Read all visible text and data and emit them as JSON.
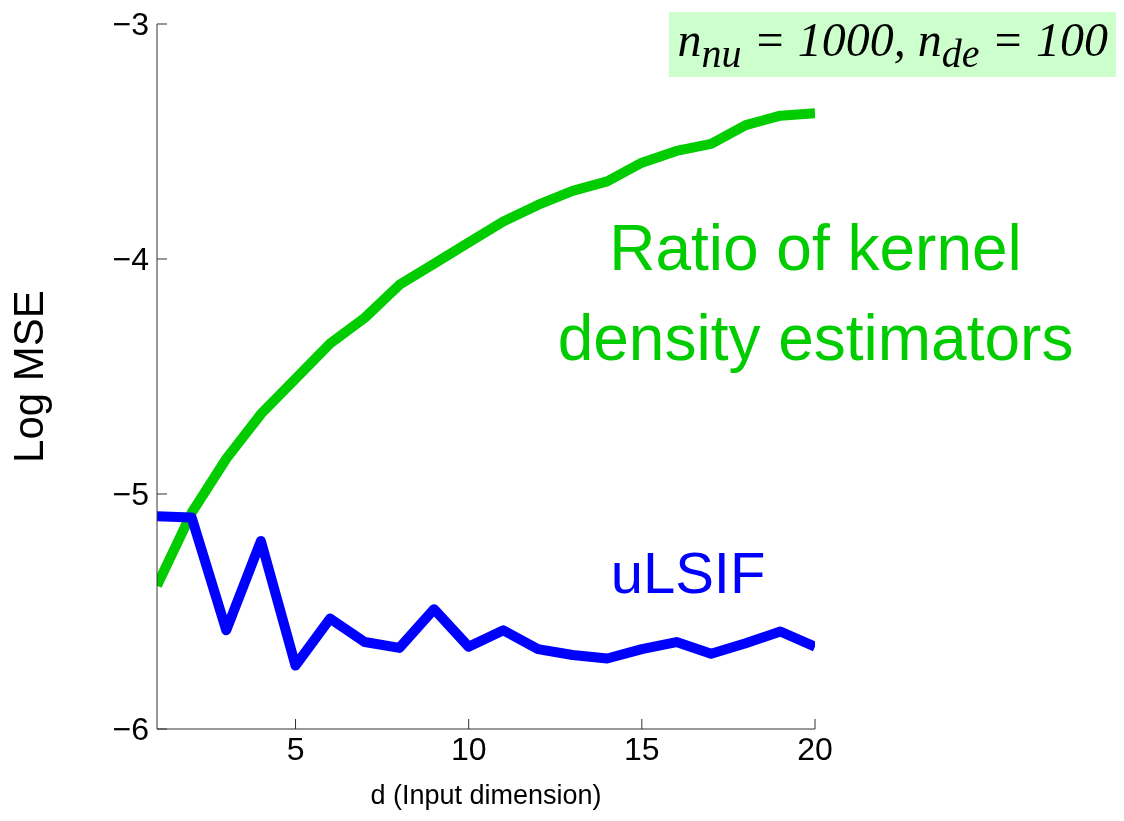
{
  "chart_data": {
    "type": "line",
    "xlabel": "d (Input dimension)",
    "ylabel": "Log MSE",
    "annotations": [
      "n$_{nu}$ = 1000, n$_{de}$ = 100"
    ],
    "x": [
      1,
      2,
      3,
      4,
      5,
      6,
      7,
      8,
      9,
      10,
      11,
      12,
      13,
      14,
      15,
      16,
      17,
      18,
      19,
      20
    ],
    "series": [
      {
        "name": "Ratio of kernel density estimators",
        "color": "#00cc00",
        "values": [
          -5.39,
          -5.08,
          -4.85,
          -4.66,
          -4.51,
          -4.36,
          -4.25,
          -4.11,
          -4.02,
          -3.93,
          -3.84,
          -3.77,
          -3.71,
          -3.67,
          -3.59,
          -3.54,
          -3.51,
          -3.43,
          -3.39,
          -3.38
        ]
      },
      {
        "name": "uLSIF",
        "color": "#0000ff",
        "values": [
          -5.095,
          -5.1,
          -5.58,
          -5.2,
          -5.73,
          -5.53,
          -5.63,
          -5.655,
          -5.49,
          -5.65,
          -5.58,
          -5.66,
          -5.685,
          -5.7,
          -5.66,
          -5.63,
          -5.68,
          -5.635,
          -5.585,
          -5.65
        ]
      }
    ],
    "xlim": [
      1,
      20
    ],
    "xticks": [
      5,
      10,
      15,
      20
    ],
    "ylim": [
      -6,
      -3
    ],
    "yticks": [
      -6,
      -5,
      -4,
      -3
    ],
    "grid": false,
    "marker": "none",
    "line_style": "solid"
  }
}
